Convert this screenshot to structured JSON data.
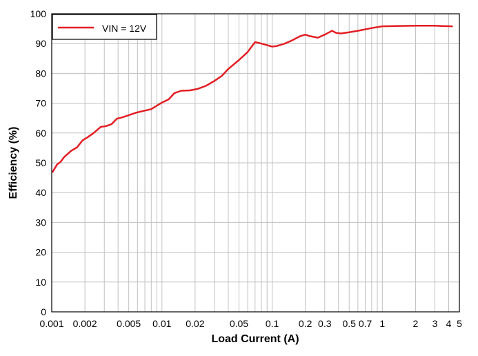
{
  "chart_data": {
    "type": "line",
    "xscale": "log",
    "xlabel": "Load Current (A)",
    "ylabel": "Efficiency (%)",
    "xlim": [
      0.001,
      5
    ],
    "ylim": [
      0,
      100
    ],
    "grid": true,
    "legend_position": "top-left",
    "x_ticks": [
      {
        "value": 0.001,
        "label": "0.001"
      },
      {
        "value": 0.002,
        "label": "0.002"
      },
      {
        "value": 0.005,
        "label": "0.005"
      },
      {
        "value": 0.01,
        "label": "0.01"
      },
      {
        "value": 0.02,
        "label": "0.02"
      },
      {
        "value": 0.05,
        "label": "0.05"
      },
      {
        "value": 0.1,
        "label": "0.1"
      },
      {
        "value": 0.2,
        "label": "0.2"
      },
      {
        "value": 0.3,
        "label": "0.3"
      },
      {
        "value": 0.5,
        "label": "0.5"
      },
      {
        "value": 0.7,
        "label": "0.7"
      },
      {
        "value": 1,
        "label": "1"
      },
      {
        "value": 2,
        "label": "2"
      },
      {
        "value": 3,
        "label": "3"
      },
      {
        "value": 4,
        "label": "4"
      },
      {
        "value": 5,
        "label": "5"
      }
    ],
    "y_ticks": [
      0,
      10,
      20,
      30,
      40,
      50,
      60,
      70,
      80,
      90,
      100
    ],
    "series": [
      {
        "name": "VIN = 12V",
        "color": "#e31e24",
        "x": [
          0.00102,
          0.00112,
          0.0012,
          0.0013,
          0.0015,
          0.0017,
          0.0019,
          0.0021,
          0.0024,
          0.0028,
          0.0031,
          0.0035,
          0.0039,
          0.0044,
          0.005,
          0.0058,
          0.0068,
          0.008,
          0.009,
          0.01,
          0.0115,
          0.013,
          0.015,
          0.018,
          0.021,
          0.025,
          0.03,
          0.035,
          0.04,
          0.05,
          0.06,
          0.07,
          0.08,
          0.09,
          0.1,
          0.11,
          0.13,
          0.15,
          0.18,
          0.2,
          0.22,
          0.26,
          0.3,
          0.35,
          0.38,
          0.42,
          0.5,
          0.6,
          0.8,
          1,
          1.3,
          2,
          3,
          3.5,
          4.3
        ],
        "values": [
          47,
          49.5,
          50.3,
          52,
          54,
          55.2,
          57.5,
          58.5,
          60,
          62.1,
          62.3,
          63,
          64.8,
          65.3,
          66,
          66.8,
          67.4,
          68,
          69.2,
          70.2,
          71.3,
          73.4,
          74.2,
          74.3,
          74.8,
          75.8,
          77.5,
          79.2,
          81.5,
          84.5,
          87.2,
          90.5,
          90,
          89.5,
          89,
          89.2,
          90,
          91,
          92.5,
          93,
          92.5,
          92,
          93,
          94.3,
          93.6,
          93.4,
          93.8,
          94.3,
          95.2,
          95.8,
          95.9,
          96,
          96,
          95.9,
          95.8
        ]
      }
    ]
  }
}
